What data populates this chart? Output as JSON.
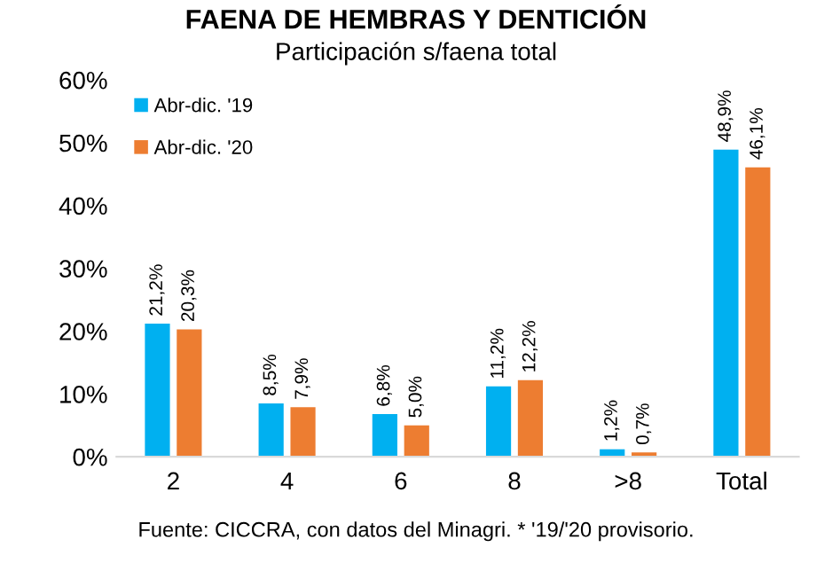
{
  "chart_data": {
    "type": "bar",
    "title": "FAENA DE HEMBRAS Y DENTICIÓN",
    "subtitle": "Participación s/faena total",
    "categories": [
      "2",
      "4",
      "6",
      "8",
      ">8",
      "Total"
    ],
    "series": [
      {
        "name": "Abr-dic. '19",
        "color": "#00b0f0",
        "values": [
          21.2,
          8.5,
          6.8,
          11.2,
          1.2,
          48.9
        ],
        "value_labels": [
          "21,2%",
          "8,5%",
          "6,8%",
          "11,2%",
          "1,2%",
          "48,9%"
        ]
      },
      {
        "name": "Abr-dic. '20",
        "color": "#ed7d31",
        "values": [
          20.3,
          7.9,
          5.0,
          12.2,
          0.7,
          46.1
        ],
        "value_labels": [
          "20,3%",
          "7,9%",
          "5,0%",
          "12,2%",
          "0,7%",
          "46,1%"
        ]
      }
    ],
    "ylim": [
      0,
      60
    ],
    "yticks": [
      {
        "value": 0,
        "label": "0%"
      },
      {
        "value": 10,
        "label": "10%"
      },
      {
        "value": 20,
        "label": "20%"
      },
      {
        "value": 30,
        "label": "30%"
      },
      {
        "value": 40,
        "label": "40%"
      },
      {
        "value": 50,
        "label": "50%"
      },
      {
        "value": 60,
        "label": "60%"
      }
    ],
    "grid": false,
    "legend": "top left",
    "annotations": [
      "Fuente: CICCRA, con datos del Minagri. * '19/'20 provisorio."
    ]
  }
}
